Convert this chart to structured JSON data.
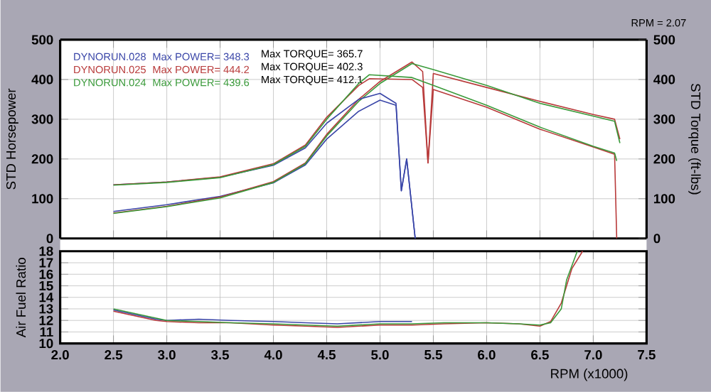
{
  "chart_data": [
    {
      "type": "line",
      "ylabel": "STD Horsepower",
      "y2label": "STD Torque (ft-lbs)",
      "xlim": [
        2,
        7.5
      ],
      "xticks": [
        2,
        2.5,
        3,
        3.5,
        4,
        4.5,
        5,
        5.5,
        6,
        6.5,
        7,
        7.5
      ],
      "ylim": [
        0,
        500
      ],
      "yticks": [
        0,
        100,
        200,
        300,
        400,
        500
      ],
      "y2lim": [
        0,
        500
      ],
      "y2ticks": [
        0,
        100,
        200,
        300,
        400,
        500
      ],
      "tick_labels": "y",
      "grid": true,
      "legend": "top left",
      "series": [
        {
          "name": "DYNORUN.028",
          "color": "#3a46a8",
          "x": [
            2.5,
            3.0,
            3.5,
            4.0,
            4.3,
            4.5,
            4.8,
            5.0,
            5.15,
            5.2,
            5.25,
            5.33
          ],
          "values": [
            68,
            85,
            106,
            140,
            185,
            250,
            320,
            348,
            335,
            120,
            200,
            0
          ]
        },
        {
          "name": "DYNORUN.025",
          "color": "#b83a3a",
          "x": [
            2.5,
            3.0,
            3.5,
            4.0,
            4.3,
            4.5,
            4.8,
            5.0,
            5.3,
            5.4,
            5.45,
            5.5,
            6.0,
            6.5,
            7.0,
            7.2,
            7.25
          ],
          "values": [
            64,
            81,
            104,
            143,
            190,
            262,
            350,
            395,
            444,
            420,
            190,
            415,
            380,
            345,
            312,
            300,
            250
          ]
        },
        {
          "name": "DYNORUN.024",
          "color": "#3a9a3a",
          "x": [
            2.5,
            3.0,
            3.5,
            4.0,
            4.3,
            4.5,
            4.8,
            5.0,
            5.3,
            5.5,
            6.0,
            6.5,
            7.0,
            7.2,
            7.25
          ],
          "values": [
            63,
            80,
            102,
            141,
            188,
            258,
            345,
            390,
            440,
            425,
            385,
            340,
            308,
            295,
            240
          ]
        },
        {
          "color": "#3a46a8",
          "axis": "y2",
          "x": [
            2.5,
            3.0,
            3.5,
            4.0,
            4.3,
            4.5,
            4.8,
            5.0,
            5.15,
            5.2,
            5.25,
            5.33
          ],
          "values": [
            135,
            142,
            154,
            184,
            228,
            290,
            350,
            365,
            340,
            120,
            200,
            0
          ]
        },
        {
          "color": "#b83a3a",
          "axis": "y2",
          "x": [
            2.5,
            3.0,
            3.5,
            4.0,
            4.3,
            4.5,
            4.8,
            4.9,
            5.3,
            5.4,
            5.45,
            5.5,
            6.0,
            6.5,
            7.0,
            7.2,
            7.22
          ],
          "values": [
            135,
            142,
            155,
            188,
            235,
            305,
            385,
            402,
            400,
            380,
            190,
            375,
            330,
            275,
            230,
            212,
            0
          ]
        },
        {
          "color": "#3a9a3a",
          "axis": "y2",
          "x": [
            2.5,
            3.0,
            3.5,
            4.0,
            4.3,
            4.5,
            4.8,
            4.9,
            5.3,
            5.5,
            6.0,
            6.5,
            7.0,
            7.2,
            7.22
          ],
          "values": [
            134,
            141,
            153,
            186,
            232,
            300,
            390,
            412,
            405,
            385,
            335,
            280,
            232,
            215,
            195
          ]
        }
      ],
      "annotations": [
        "Max POWER= 348.3",
        "Max POWER= 444.2",
        "Max POWER= 439.6",
        "Max TORQUE= 365.7",
        "Max TORQUE= 402.3",
        "Max TORQUE= 412.1",
        "RPM = 2.07"
      ]
    },
    {
      "type": "line",
      "ylabel": "Air Fuel Ratio",
      "xlabel": "RPM (x1000)",
      "xlim": [
        2,
        7.5
      ],
      "xticks": [
        {
          "value": 2,
          "label": "2.0"
        },
        {
          "value": 2.5,
          "label": "2.5"
        },
        {
          "value": 3,
          "label": "3.0"
        },
        {
          "value": 3.5,
          "label": "3.5"
        },
        {
          "value": 4,
          "label": "4.0"
        },
        {
          "value": 4.5,
          "label": "4.5"
        },
        {
          "value": 5,
          "label": "5.0"
        },
        {
          "value": 5.5,
          "label": "5.5"
        },
        {
          "value": 6,
          "label": "6.0"
        },
        {
          "value": 6.5,
          "label": "6.5"
        },
        {
          "value": 7,
          "label": "7.0"
        },
        {
          "value": 7.5,
          "label": "7.5"
        }
      ],
      "ylim": [
        10,
        18
      ],
      "yticks": [
        10,
        11,
        12,
        13,
        14,
        15,
        16,
        17,
        18
      ],
      "grid": true,
      "series": [
        {
          "color": "#3a46a8",
          "x": [
            2.5,
            2.7,
            2.9,
            3.0,
            3.3,
            3.6,
            4.0,
            4.3,
            4.6,
            5.0,
            5.3
          ],
          "values": [
            12.9,
            12.5,
            12.1,
            12.0,
            12.1,
            12.0,
            11.9,
            11.8,
            11.7,
            11.9,
            11.9
          ]
        },
        {
          "color": "#b83a3a",
          "x": [
            2.5,
            2.7,
            2.9,
            3.0,
            3.3,
            3.6,
            4.0,
            4.3,
            4.6,
            5.0,
            5.3,
            5.6,
            6.0,
            6.3,
            6.5,
            6.6,
            6.7,
            6.8,
            6.9
          ],
          "values": [
            12.8,
            12.4,
            12.0,
            11.9,
            11.8,
            11.8,
            11.6,
            11.5,
            11.4,
            11.6,
            11.6,
            11.7,
            11.8,
            11.7,
            11.5,
            11.9,
            13.5,
            16.5,
            18
          ]
        },
        {
          "color": "#3a9a3a",
          "x": [
            2.5,
            2.7,
            2.9,
            3.0,
            3.3,
            3.6,
            4.0,
            4.3,
            4.6,
            5.0,
            5.3,
            5.6,
            6.0,
            6.3,
            6.5,
            6.6,
            6.7,
            6.75,
            6.85
          ],
          "values": [
            13.0,
            12.6,
            12.2,
            12.0,
            11.9,
            11.8,
            11.7,
            11.6,
            11.5,
            11.7,
            11.7,
            11.8,
            11.8,
            11.7,
            11.6,
            11.8,
            13.0,
            15.5,
            18
          ]
        }
      ]
    }
  ]
}
